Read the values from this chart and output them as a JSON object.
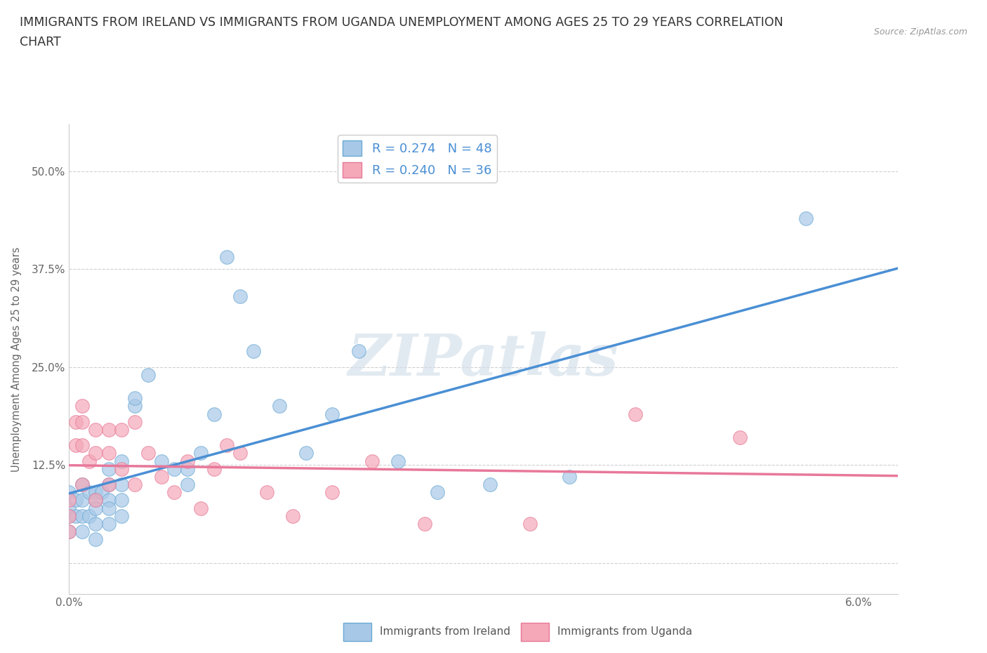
{
  "title_line1": "IMMIGRANTS FROM IRELAND VS IMMIGRANTS FROM UGANDA UNEMPLOYMENT AMONG AGES 25 TO 29 YEARS CORRELATION",
  "title_line2": "CHART",
  "source_text": "Source: ZipAtlas.com",
  "ylabel": "Unemployment Among Ages 25 to 29 years",
  "xlim": [
    0.0,
    0.063
  ],
  "ylim": [
    -0.04,
    0.56
  ],
  "yticks": [
    0.0,
    0.125,
    0.25,
    0.375,
    0.5
  ],
  "ytick_labels": [
    "",
    "12.5%",
    "25.0%",
    "37.5%",
    "50.0%"
  ],
  "xtick_positions": [
    0.0,
    0.01,
    0.02,
    0.03,
    0.04,
    0.05,
    0.06
  ],
  "xtick_labels": [
    "0.0%",
    "",
    "",
    "",
    "",
    "",
    "6.0%"
  ],
  "ireland_color": "#a8c8e8",
  "uganda_color": "#f4a8b8",
  "ireland_edge_color": "#6aaad4",
  "uganda_edge_color": "#e87898",
  "ireland_line_color": "#4a8fd4",
  "uganda_line_color": "#e8789a",
  "R_ireland": 0.274,
  "N_ireland": 48,
  "R_uganda": 0.24,
  "N_uganda": 36,
  "ireland_x": [
    0.0,
    0.0,
    0.0,
    0.0,
    0.0005,
    0.0005,
    0.001,
    0.001,
    0.001,
    0.001,
    0.0015,
    0.0015,
    0.002,
    0.002,
    0.002,
    0.002,
    0.002,
    0.0025,
    0.003,
    0.003,
    0.003,
    0.003,
    0.003,
    0.004,
    0.004,
    0.004,
    0.004,
    0.005,
    0.005,
    0.006,
    0.007,
    0.008,
    0.009,
    0.009,
    0.01,
    0.011,
    0.012,
    0.013,
    0.014,
    0.016,
    0.018,
    0.02,
    0.022,
    0.025,
    0.028,
    0.032,
    0.038,
    0.056
  ],
  "ireland_y": [
    0.09,
    0.07,
    0.06,
    0.04,
    0.08,
    0.06,
    0.1,
    0.08,
    0.06,
    0.04,
    0.09,
    0.06,
    0.09,
    0.08,
    0.07,
    0.05,
    0.03,
    0.09,
    0.12,
    0.1,
    0.08,
    0.07,
    0.05,
    0.13,
    0.1,
    0.08,
    0.06,
    0.2,
    0.21,
    0.24,
    0.13,
    0.12,
    0.12,
    0.1,
    0.14,
    0.19,
    0.39,
    0.34,
    0.27,
    0.2,
    0.14,
    0.19,
    0.27,
    0.13,
    0.09,
    0.1,
    0.11,
    0.44
  ],
  "uganda_x": [
    0.0,
    0.0,
    0.0,
    0.0005,
    0.0005,
    0.001,
    0.001,
    0.001,
    0.001,
    0.0015,
    0.002,
    0.002,
    0.002,
    0.003,
    0.003,
    0.003,
    0.004,
    0.004,
    0.005,
    0.005,
    0.006,
    0.007,
    0.008,
    0.009,
    0.01,
    0.011,
    0.012,
    0.013,
    0.015,
    0.017,
    0.02,
    0.023,
    0.027,
    0.035,
    0.043,
    0.051
  ],
  "uganda_y": [
    0.08,
    0.06,
    0.04,
    0.18,
    0.15,
    0.2,
    0.18,
    0.15,
    0.1,
    0.13,
    0.17,
    0.14,
    0.08,
    0.17,
    0.14,
    0.1,
    0.17,
    0.12,
    0.18,
    0.1,
    0.14,
    0.11,
    0.09,
    0.13,
    0.07,
    0.12,
    0.15,
    0.14,
    0.09,
    0.06,
    0.09,
    0.13,
    0.05,
    0.05,
    0.19,
    0.16
  ],
  "watermark": "ZIPatlas",
  "background_color": "#ffffff",
  "grid_color": "#d0d0d0",
  "title_fontsize": 12.5,
  "axis_label_fontsize": 10.5,
  "tick_fontsize": 11,
  "legend_fontsize": 13
}
